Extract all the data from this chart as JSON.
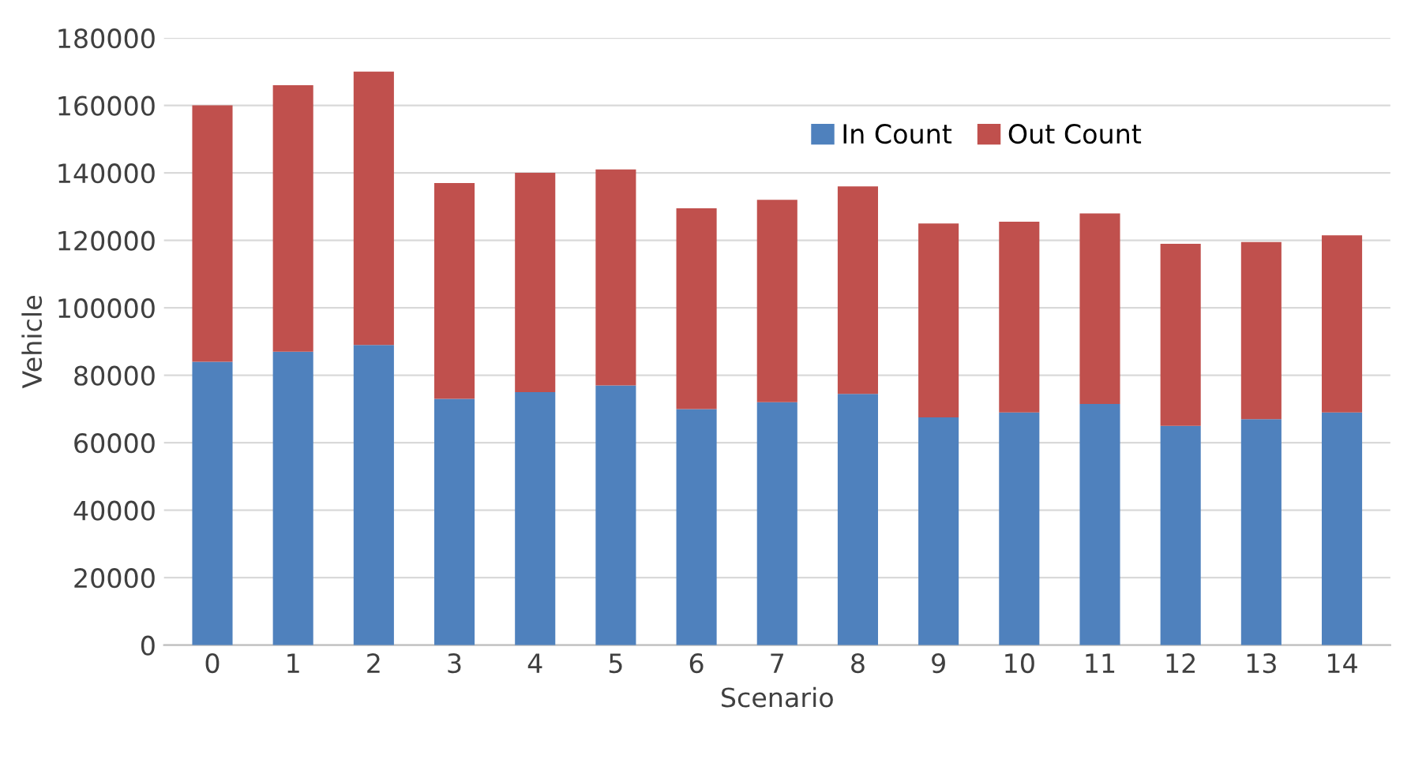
{
  "chart_data": {
    "type": "bar",
    "stacked": true,
    "xlabel": "Scenario",
    "ylabel": "Vehicle",
    "categories": [
      "0",
      "1",
      "2",
      "3",
      "4",
      "5",
      "6",
      "7",
      "8",
      "9",
      "10",
      "11",
      "12",
      "13",
      "14"
    ],
    "series": [
      {
        "name": "In Count",
        "color": "#4f81bd",
        "values": [
          84000,
          87000,
          89000,
          73000,
          75000,
          77000,
          70000,
          72000,
          74500,
          67500,
          69000,
          71500,
          65000,
          67000,
          69000
        ]
      },
      {
        "name": "Out Count",
        "color": "#c0504d",
        "values": [
          76000,
          79000,
          81000,
          64000,
          65000,
          64000,
          59500,
          60000,
          61500,
          57500,
          56500,
          56500,
          54000,
          52500,
          52500
        ]
      }
    ],
    "ylim": [
      0,
      180000
    ],
    "yticks": [
      0,
      20000,
      40000,
      60000,
      80000,
      100000,
      120000,
      140000,
      160000,
      180000
    ],
    "grid": "y",
    "legend": "top right"
  }
}
